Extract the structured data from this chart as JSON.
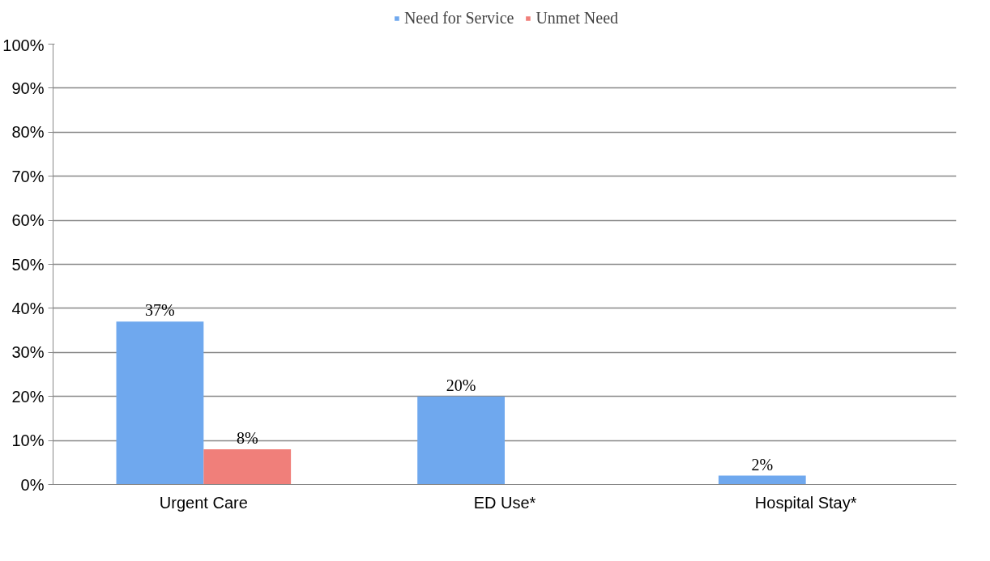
{
  "chart_data": {
    "type": "bar",
    "categories": [
      "Urgent Care",
      "ED Use*",
      "Hospital Stay*"
    ],
    "series": [
      {
        "name": "Need for Service",
        "color": "#6fa8ee",
        "values": [
          37,
          20,
          2
        ],
        "value_labels": [
          "37%",
          "20%",
          "2%"
        ]
      },
      {
        "name": "Unmet Need",
        "color": "#f07f7a",
        "values": [
          8,
          null,
          null
        ],
        "value_labels": [
          "8%",
          null,
          null
        ]
      }
    ],
    "ylim": [
      0,
      100
    ],
    "yticks": [
      {
        "value": 0,
        "label": "0%"
      },
      {
        "value": 10,
        "label": "10%"
      },
      {
        "value": 20,
        "label": "20%"
      },
      {
        "value": 30,
        "label": "30%"
      },
      {
        "value": 40,
        "label": "40%"
      },
      {
        "value": 50,
        "label": "50%"
      },
      {
        "value": 60,
        "label": "60%"
      },
      {
        "value": 70,
        "label": "70%"
      },
      {
        "value": 80,
        "label": "80%"
      },
      {
        "value": 90,
        "label": "90%"
      },
      {
        "value": 100,
        "label": "100%"
      }
    ],
    "grid": "y",
    "legend": "top"
  }
}
